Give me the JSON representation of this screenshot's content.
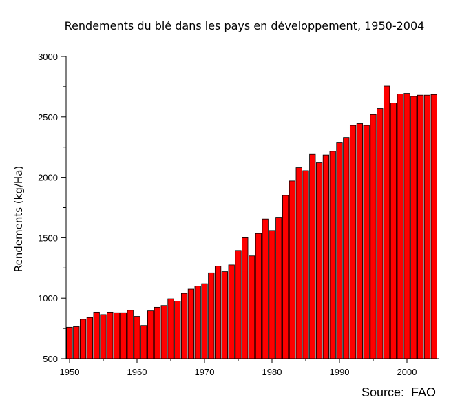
{
  "chart_data": {
    "type": "bar",
    "title": "Rendements du blé dans les pays en développement, 1950-2004",
    "ylabel": "Rendements (kg/Ha)",
    "xlabel": "",
    "source": "Source:  FAO",
    "ylim": [
      500,
      3000
    ],
    "xlim": [
      1950,
      2004
    ],
    "y_ticks": [
      500,
      1000,
      1500,
      2000,
      2500,
      3000
    ],
    "x_ticks": [
      1950,
      1960,
      1970,
      1980,
      1990,
      2000
    ],
    "grid": false,
    "bar_color": "#ff0000",
    "x": [
      1950,
      1951,
      1952,
      1953,
      1954,
      1955,
      1956,
      1957,
      1958,
      1959,
      1960,
      1961,
      1962,
      1963,
      1964,
      1965,
      1966,
      1967,
      1968,
      1969,
      1970,
      1971,
      1972,
      1973,
      1974,
      1975,
      1976,
      1977,
      1978,
      1979,
      1980,
      1981,
      1982,
      1983,
      1984,
      1985,
      1986,
      1987,
      1988,
      1989,
      1990,
      1991,
      1992,
      1993,
      1994,
      1995,
      1996,
      1997,
      1998,
      1999,
      2000,
      2001,
      2002,
      2003,
      2004
    ],
    "values": [
      760,
      765,
      825,
      840,
      885,
      865,
      885,
      880,
      880,
      900,
      850,
      775,
      895,
      925,
      940,
      995,
      975,
      1040,
      1075,
      1100,
      1120,
      1210,
      1265,
      1220,
      1275,
      1395,
      1500,
      1350,
      1535,
      1655,
      1560,
      1670,
      1850,
      1970,
      2080,
      2055,
      2190,
      2120,
      2185,
      2215,
      2285,
      2330,
      2430,
      2445,
      2430,
      2520,
      2570,
      2755,
      2615,
      2690,
      2695,
      2670,
      2680,
      2680,
      2685
    ]
  }
}
